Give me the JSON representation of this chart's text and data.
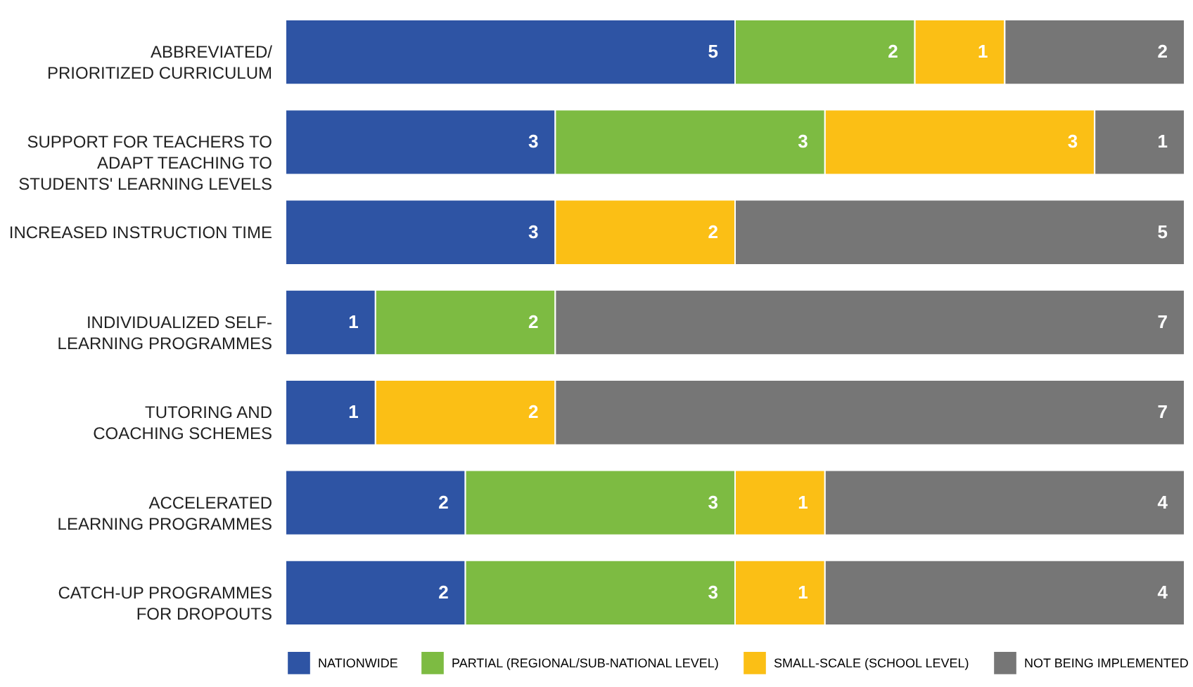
{
  "chart_data": {
    "type": "bar",
    "orientation": "horizontal",
    "stacked": true,
    "data_labels": true,
    "legend": "bottom",
    "grid": false,
    "tick_labels": "y",
    "xlim": [
      0,
      10
    ],
    "categories": [
      "ABBREVIATED/\nPRIORITIZED CURRICULUM",
      "SUPPORT FOR TEACHERS TO\nADAPT TEACHING TO\nSTUDENTS' LEARNING LEVELS",
      "INCREASED INSTRUCTION TIME",
      "INDIVIDUALIZED SELF-\nLEARNING PROGRAMMES",
      "TUTORING AND\nCOACHING SCHEMES",
      "ACCELERATED\nLEARNING PROGRAMMES",
      "CATCH-UP PROGRAMMES\nFOR DROPOUTS"
    ],
    "series": [
      {
        "name": "NATIONWIDE",
        "color": "#2e54a4",
        "values": [
          5,
          3,
          3,
          1,
          1,
          2,
          2
        ]
      },
      {
        "name": "PARTIAL (REGIONAL/SUB-NATIONAL LEVEL)",
        "color": "#7dbb42",
        "values": [
          2,
          3,
          null,
          2,
          null,
          3,
          3
        ]
      },
      {
        "name": "SMALL-SCALE (SCHOOL LEVEL)",
        "color": "#fbbf15",
        "values": [
          1,
          3,
          2,
          null,
          2,
          1,
          1
        ]
      },
      {
        "name": "NOT BEING IMPLEMENTED",
        "color": "#767676",
        "values": [
          2,
          1,
          5,
          7,
          7,
          4,
          4
        ]
      }
    ]
  }
}
